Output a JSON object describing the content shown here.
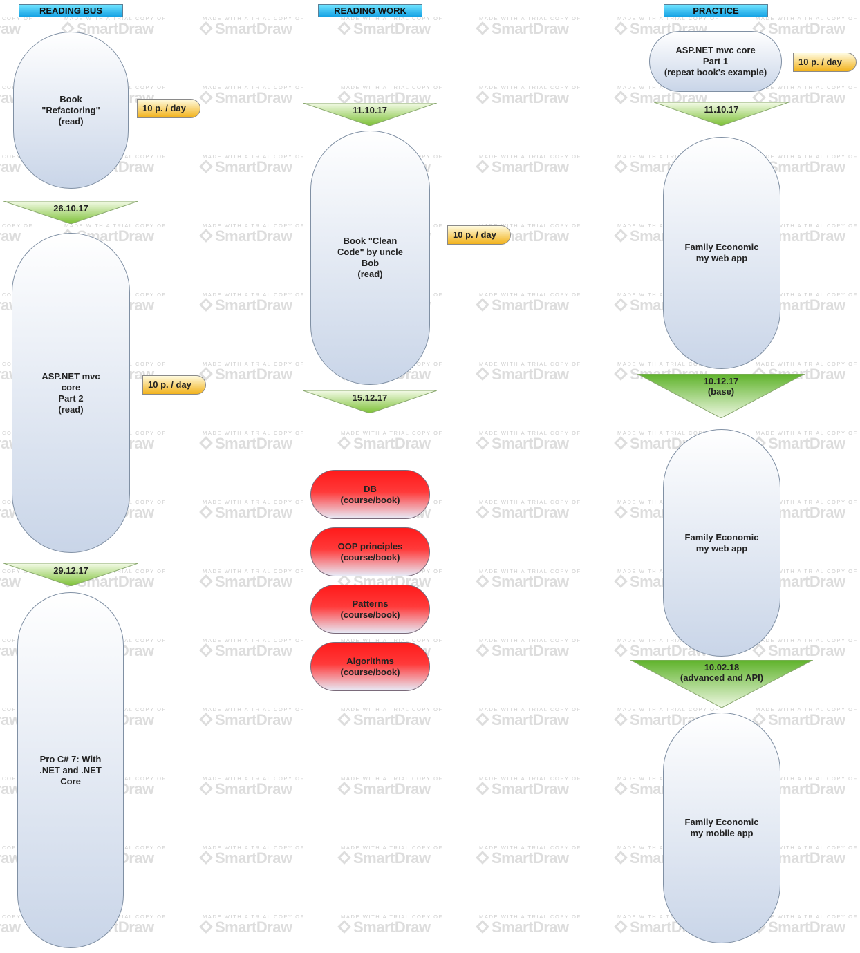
{
  "watermark": {
    "small": "MADE WITH A TRIAL COPY OF",
    "big": "SmartDraw",
    "logo_icon": "smartdraw-diamond-icon"
  },
  "columns": [
    {
      "header": "READING BUS"
    },
    {
      "header": "READING WORK"
    },
    {
      "header": "PRACTICE"
    }
  ],
  "bus": {
    "refactoring": "Book\n\"Refactoring\"\n(read)",
    "refactoring_rate": "10 p. / day",
    "milestone1": "26.10.17",
    "aspnet2": "ASP.NET mvc\ncore\nPart 2\n(read)",
    "aspnet2_rate": "10 p. / day",
    "milestone2": "29.12.17",
    "procsharp": "Pro C# 7: With\n.NET and .NET\nCore"
  },
  "work": {
    "milestone1": "11.10.17",
    "cleancode": "Book \"Clean\nCode\" by uncle\nBob\n(read)",
    "cleancode_rate": "10 p. / day",
    "milestone2": "15.12.17",
    "courses": [
      "DB\n(course/book)",
      "OOP principles\n(course/book)",
      "Patterns\n(course/book)",
      "Algorithms\n(course/book)"
    ]
  },
  "practice": {
    "aspnet1": "ASP.NET mvc core\nPart 1\n(repeat book's example)",
    "aspnet1_rate": "10 p. / day",
    "milestone1": "11.10.17",
    "web1": "Family Economic\nmy web app",
    "milestone2": "10.12.17\n(base)",
    "web2": "Family Economic\nmy web app",
    "milestone3": "10.02.18\n(advanced and API)",
    "mobile": "Family Economic\nmy mobile app"
  },
  "colors": {
    "header": "#16a2e4",
    "pill": "#c9d5e8",
    "course": "#ff1a1a",
    "rate_tag": "#f2b21b",
    "milestone": "#8cc63f"
  }
}
